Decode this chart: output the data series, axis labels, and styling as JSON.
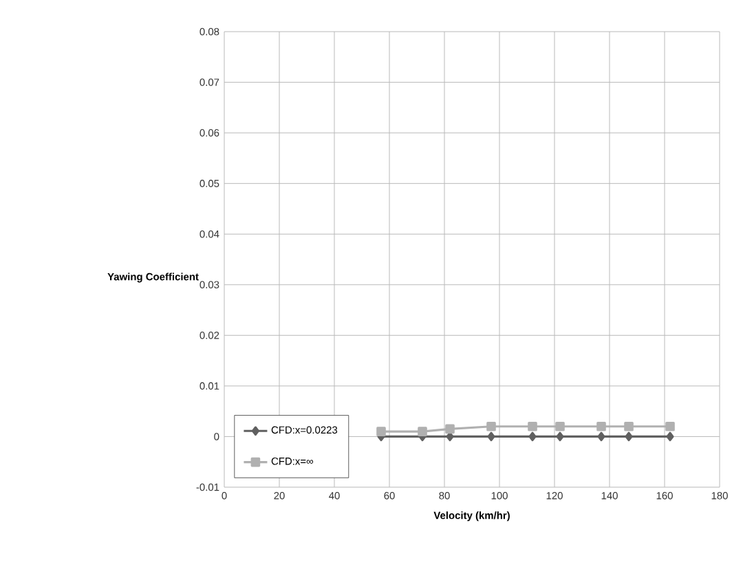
{
  "chart_data": {
    "type": "line",
    "xlabel": "Velocity (km/hr)",
    "ylabel": "Yawing Coefficient",
    "x": [
      57,
      72,
      82,
      97,
      112,
      122,
      137,
      147,
      162
    ],
    "series": [
      {
        "name": "CFD:x=0.0223",
        "color": "#606060",
        "marker": "diamond",
        "values": [
          0,
          0,
          0,
          0,
          0,
          0,
          0,
          0,
          0
        ]
      },
      {
        "name": "CFD:x=∞",
        "color": "#b0b0b0",
        "marker": "square",
        "values": [
          0.001,
          0.001,
          0.0015,
          0.002,
          0.002,
          0.002,
          0.002,
          0.002,
          0.002
        ]
      }
    ],
    "xlim": [
      0,
      180
    ],
    "xticks": [
      0,
      20,
      40,
      60,
      80,
      100,
      120,
      140,
      160,
      180
    ],
    "ylim": [
      -0.01,
      0.08
    ],
    "yticks": [
      -0.01,
      0,
      0.01,
      0.02,
      0.03,
      0.04,
      0.05,
      0.06,
      0.07,
      0.08
    ],
    "grid": true,
    "legend": "bottom left",
    "line_style": "solid"
  }
}
